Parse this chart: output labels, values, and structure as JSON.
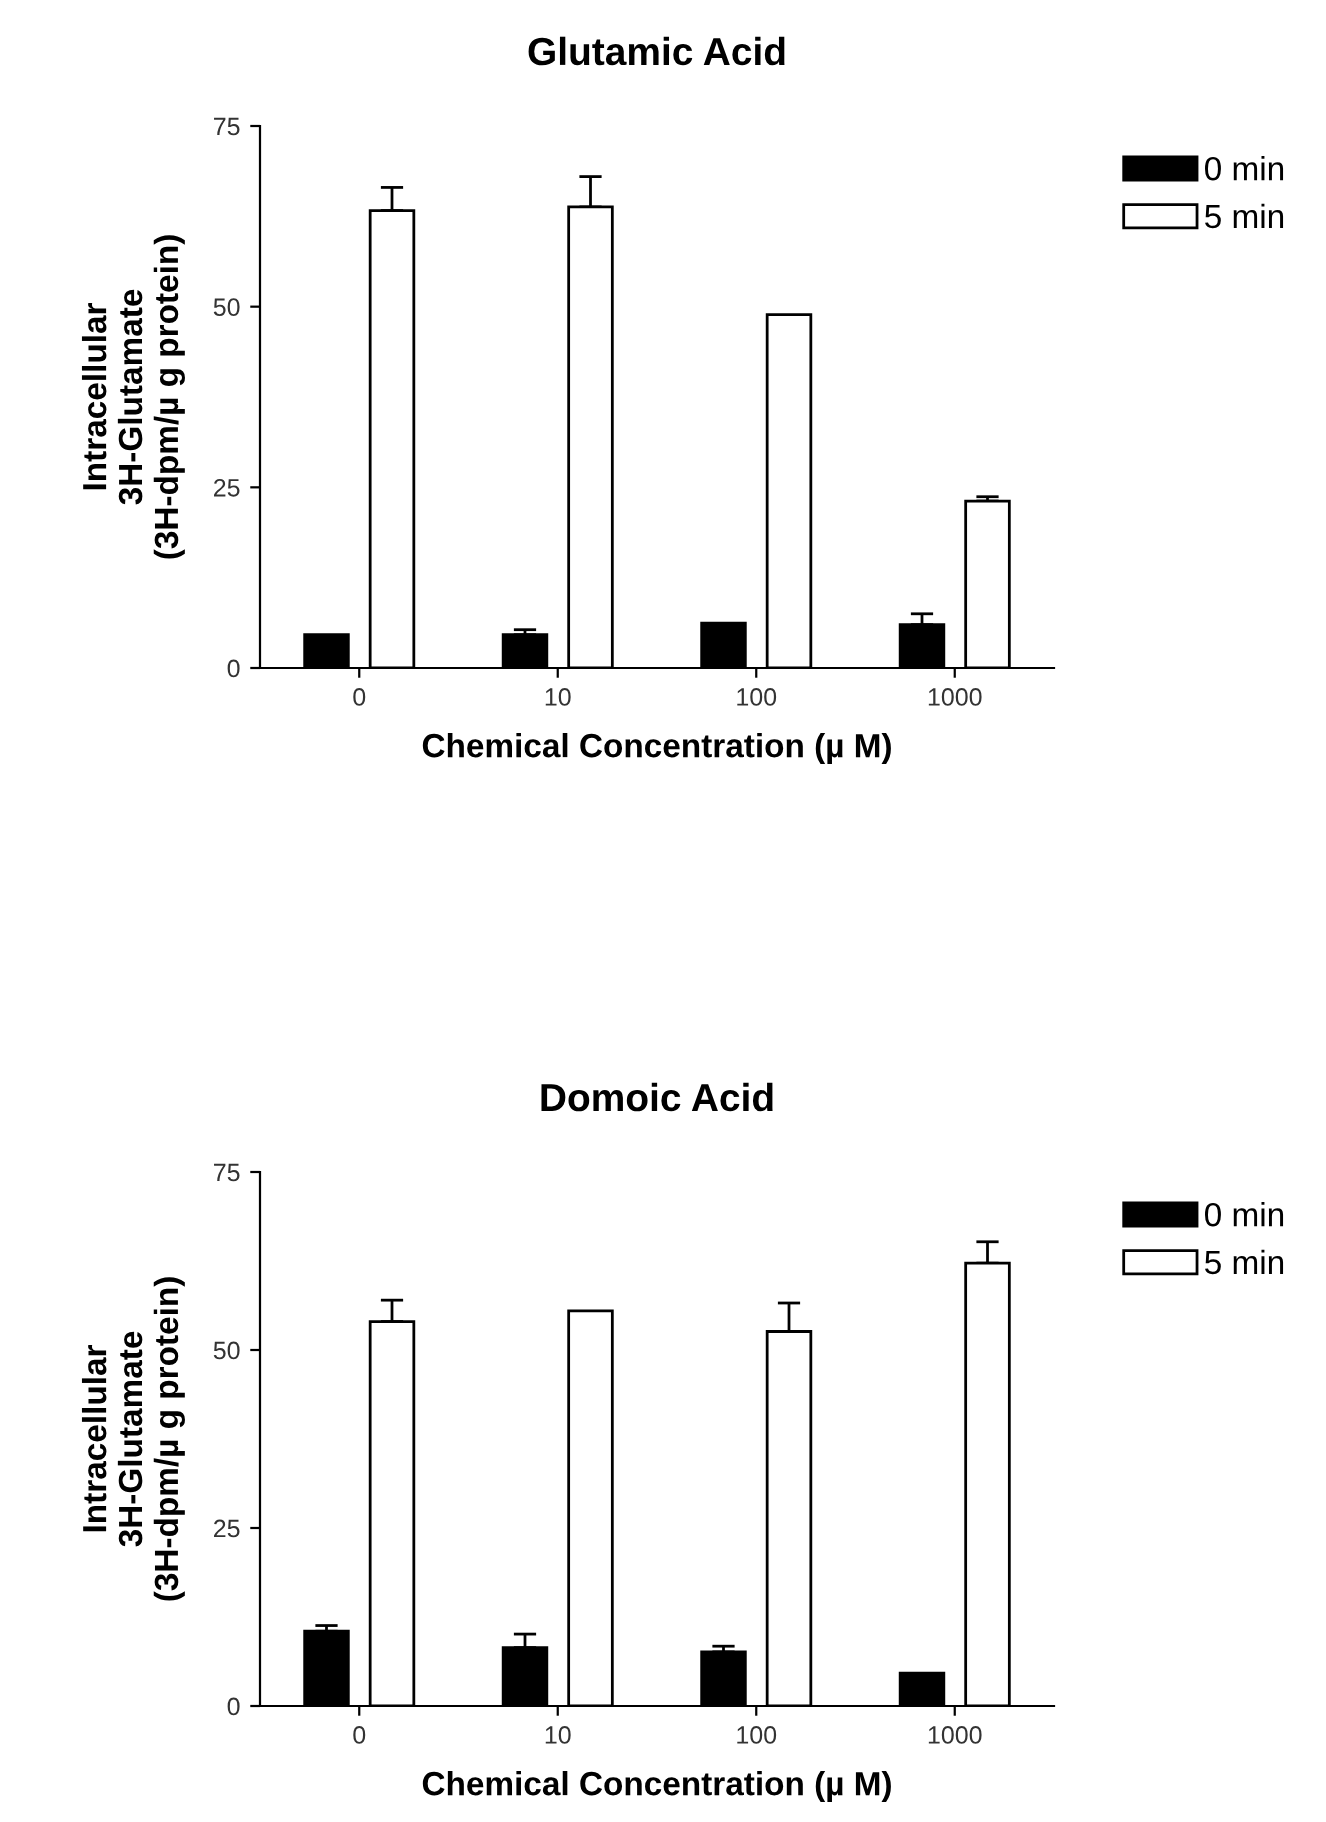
{
  "chart_data": [
    {
      "type": "bar",
      "title": "Glutamic Acid",
      "xlabel": "Chemical Concentration (µ M)",
      "ylabel": "Intracellular\n3H-Glutamate\n(3H-dpm/µ g protein)",
      "categories": [
        "0",
        "10",
        "100",
        "1000"
      ],
      "series": [
        {
          "name": "0 min",
          "color": "#000000",
          "values": [
            4.6,
            4.6,
            6.2,
            6.0
          ],
          "errors": [
            null,
            [
              4.6,
              5.3
            ],
            null,
            [
              6.0,
              7.5
            ]
          ]
        },
        {
          "name": "5 min",
          "color": "#ffffff",
          "values": [
            63.3,
            63.8,
            48.9,
            23.1
          ],
          "errors": [
            [
              63.3,
              66.5
            ],
            [
              63.8,
              68.0
            ],
            null,
            [
              23.1,
              23.7
            ]
          ]
        }
      ],
      "ylim": [
        0,
        75
      ],
      "yticks": [
        0,
        25,
        50,
        75
      ],
      "legend": "top right",
      "grid": false
    },
    {
      "type": "bar",
      "title": "Domoic Acid",
      "xlabel": "Chemical Concentration (µ M)",
      "ylabel": "Intracellular\n3H-Glutamate\n(3H-dpm/µ g protein)",
      "categories": [
        "0",
        "10",
        "100",
        "1000"
      ],
      "series": [
        {
          "name": "0 min",
          "color": "#000000",
          "values": [
            10.5,
            8.2,
            7.6,
            4.6
          ],
          "errors": [
            [
              10.5,
              11.3
            ],
            [
              8.2,
              10.1
            ],
            [
              7.6,
              8.4
            ],
            null
          ]
        },
        {
          "name": "5 min",
          "color": "#ffffff",
          "values": [
            54.0,
            55.5,
            52.6,
            62.2
          ],
          "errors": [
            [
              54.0,
              57.0
            ],
            null,
            [
              52.6,
              56.6
            ],
            [
              62.2,
              65.2
            ]
          ]
        }
      ],
      "ylim": [
        0,
        75
      ],
      "yticks": [
        0,
        25,
        50,
        75
      ],
      "legend": "top right",
      "grid": false
    }
  ]
}
